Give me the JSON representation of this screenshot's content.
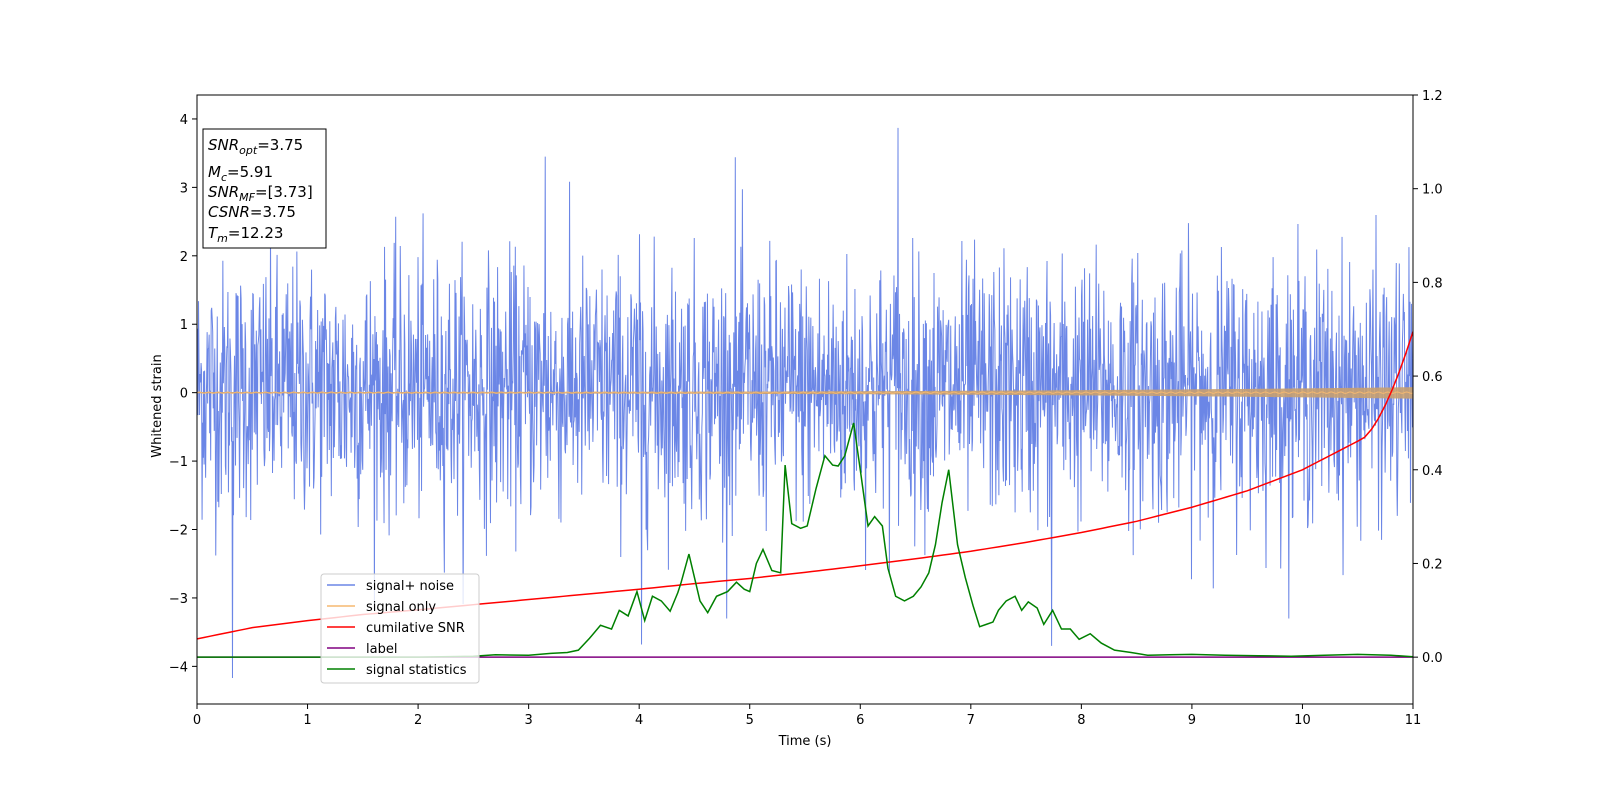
{
  "chart_data": {
    "type": "line",
    "xlabel": "Time (s)",
    "ylabel": "Whitened strain",
    "xlim": [
      0,
      11
    ],
    "ylim_left": [
      -4.55,
      4.35
    ],
    "ylim_right": [
      -0.1,
      1.2
    ],
    "x_ticks": [
      "0",
      "1",
      "2",
      "3",
      "4",
      "5",
      "6",
      "7",
      "8",
      "9",
      "10",
      "11"
    ],
    "y_left_ticks": [
      "−4",
      "−3",
      "−2",
      "−1",
      "0",
      "1",
      "2",
      "3",
      "4"
    ],
    "y_right_ticks": [
      "0.0",
      "0.2",
      "0.4",
      "0.6",
      "0.8",
      "1.0",
      "1.2"
    ],
    "grid": false,
    "legend_position": "lower-left",
    "series": [
      {
        "name": "signal+ noise",
        "axis": "left",
        "color": "#6b86e6",
        "kind": "noise",
        "amplitude_band": [
          -2.4,
          2.6
        ],
        "peaks": [
          {
            "x": 0.32,
            "y": -4.17
          },
          {
            "x": 6.34,
            "y": 3.87
          },
          {
            "x": 3.15,
            "y": 3.45
          },
          {
            "x": 4.87,
            "y": 3.44
          },
          {
            "x": 7.73,
            "y": -3.7
          },
          {
            "x": 4.02,
            "y": -3.68
          }
        ]
      },
      {
        "name": "signal only",
        "axis": "left",
        "color": "#f5b870",
        "kind": "chirp",
        "amplitude_start": 0.01,
        "amplitude_end": 0.08
      },
      {
        "name": "cumilative SNR",
        "axis": "right",
        "color": "#ff0000",
        "x": [
          0,
          0.5,
          1,
          1.5,
          2,
          2.5,
          3,
          3.5,
          4,
          4.5,
          5,
          5.5,
          6,
          6.5,
          7,
          7.5,
          8,
          8.5,
          9,
          9.5,
          10,
          10.5,
          11
        ],
        "y": [
          0.039,
          0.063,
          0.078,
          0.091,
          0.101,
          0.112,
          0.123,
          0.134,
          0.145,
          0.157,
          0.168,
          0.181,
          0.195,
          0.21,
          0.226,
          0.245,
          0.266,
          0.29,
          0.32,
          0.355,
          0.4,
          0.461,
          0.695
        ]
      },
      {
        "name": "label",
        "axis": "right",
        "color": "#800080",
        "x": [
          0,
          11
        ],
        "y": [
          0.0,
          0.0
        ]
      },
      {
        "name": "signal statistics",
        "axis": "right",
        "color": "#008000",
        "x": [
          0,
          0.5,
          1,
          1.5,
          2,
          2.5,
          2.7,
          3,
          3.2,
          3.35,
          3.45,
          3.55,
          3.65,
          3.75,
          3.82,
          3.9,
          3.98,
          4.05,
          4.12,
          4.2,
          4.28,
          4.35,
          4.38,
          4.45,
          4.55,
          4.62,
          4.7,
          4.8,
          4.88,
          4.95,
          5.0,
          5.06,
          5.12,
          5.2,
          5.28,
          5.32,
          5.38,
          5.46,
          5.52,
          5.6,
          5.68,
          5.75,
          5.8,
          5.86,
          5.94,
          6.0,
          6.07,
          6.13,
          6.2,
          6.25,
          6.32,
          6.4,
          6.48,
          6.55,
          6.62,
          6.68,
          6.74,
          6.8,
          6.88,
          6.95,
          7.02,
          7.08,
          7.14,
          7.2,
          7.25,
          7.32,
          7.4,
          7.46,
          7.52,
          7.6,
          7.66,
          7.74,
          7.82,
          7.9,
          7.98,
          8.08,
          8.18,
          8.3,
          8.45,
          8.6,
          8.8,
          9.0,
          9.3,
          9.6,
          9.9,
          10.2,
          10.5,
          10.8,
          11
        ],
        "y": [
          0.0,
          0.0,
          0.0,
          0.0,
          0.0,
          0.002,
          0.005,
          0.004,
          0.008,
          0.01,
          0.015,
          0.04,
          0.068,
          0.06,
          0.1,
          0.088,
          0.14,
          0.078,
          0.13,
          0.12,
          0.098,
          0.138,
          0.16,
          0.22,
          0.12,
          0.095,
          0.13,
          0.14,
          0.16,
          0.145,
          0.14,
          0.2,
          0.23,
          0.185,
          0.18,
          0.41,
          0.285,
          0.275,
          0.28,
          0.36,
          0.43,
          0.41,
          0.408,
          0.43,
          0.5,
          0.4,
          0.28,
          0.3,
          0.28,
          0.19,
          0.13,
          0.12,
          0.13,
          0.15,
          0.18,
          0.24,
          0.33,
          0.4,
          0.24,
          0.17,
          0.11,
          0.065,
          0.07,
          0.075,
          0.1,
          0.12,
          0.13,
          0.1,
          0.118,
          0.105,
          0.07,
          0.1,
          0.06,
          0.06,
          0.038,
          0.05,
          0.03,
          0.015,
          0.01,
          0.004,
          0.005,
          0.006,
          0.004,
          0.003,
          0.002,
          0.004,
          0.006,
          0.004,
          0.001
        ]
      }
    ],
    "info_box": {
      "snr_opt": {
        "main": "SNR",
        "sub": "opt",
        "value": "=3.75"
      },
      "mc": {
        "main": "M",
        "sub": "c",
        "value": "=5.91"
      },
      "snr_mf": {
        "main": "SNR",
        "sub": "MF",
        "value": "=[3.73]"
      },
      "csnr": {
        "main": "CSNR",
        "sub": "",
        "value": "=3.75"
      },
      "tm": {
        "main": "T",
        "sub": "m",
        "value": "=12.23"
      }
    }
  }
}
